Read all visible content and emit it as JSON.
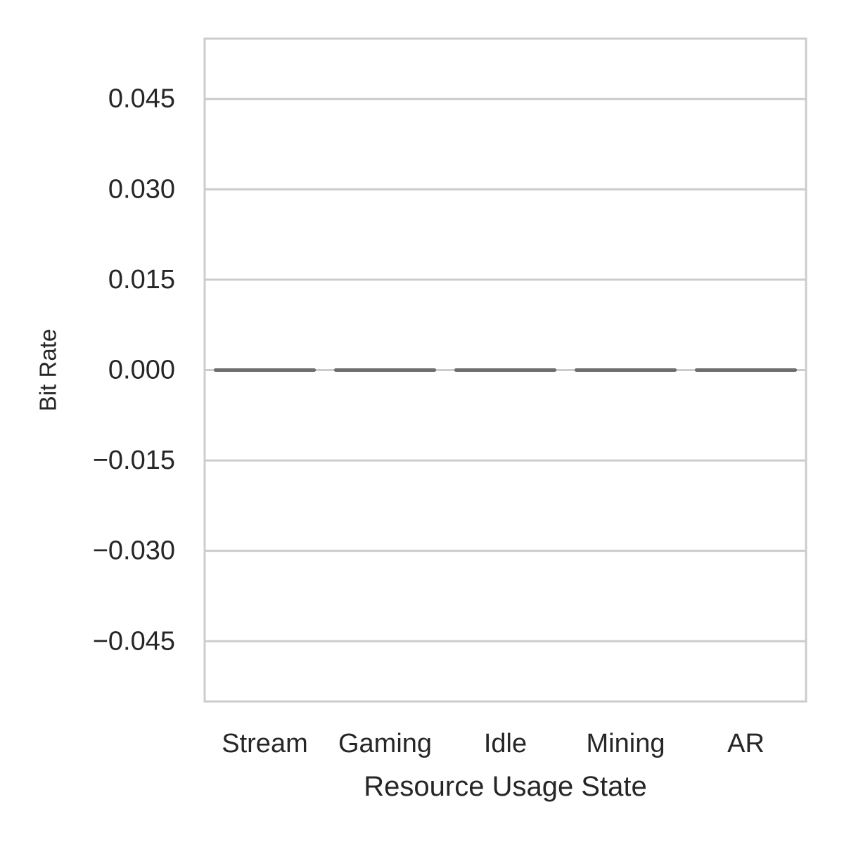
{
  "chart_data": {
    "type": "box",
    "title": "",
    "xlabel": "Resource Usage State",
    "ylabel": "Bit Rate",
    "categories": [
      "Stream",
      "Gaming",
      "Idle",
      "Mining",
      "AR"
    ],
    "values": [
      0,
      0,
      0,
      0,
      0
    ],
    "ylim": [
      -0.055,
      0.055
    ],
    "yticks": [
      0.045,
      0.03,
      0.015,
      0.0,
      -0.015,
      -0.03,
      -0.045
    ],
    "ytick_labels": [
      "0.045",
      "0.030",
      "0.015",
      "0.000",
      "−0.015",
      "−0.030",
      "−0.045"
    ],
    "grid": true,
    "colors": {
      "frame": "#cccccc",
      "grid": "#cccccc",
      "box_line": "#6e6e6e",
      "text": "#262626"
    }
  }
}
